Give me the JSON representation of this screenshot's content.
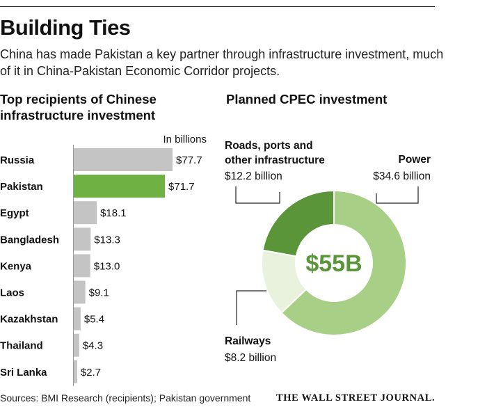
{
  "headline": "Building Ties",
  "dek": "China has made Pakistan a key partner through infrastructure investment, much of it in China-Pakistan Economic Corridor projects.",
  "colors": {
    "bar_default": "#c4c4c4",
    "bar_highlight": "#6fb243",
    "donut_power": "#a8cf86",
    "donut_railways": "#e8f2dc",
    "donut_roads": "#5a953a",
    "total_text": "#5a953a"
  },
  "chart_data": [
    {
      "type": "bar",
      "orientation": "horizontal",
      "title": "Top recipients of Chinese infrastructure investment",
      "unit_label": "In billions",
      "categories": [
        "Russia",
        "Pakistan",
        "Egypt",
        "Bangladesh",
        "Kenya",
        "Laos",
        "Kazakhstan",
        "Thailand",
        "Sri Lanka"
      ],
      "values": [
        77.7,
        71.7,
        18.1,
        13.3,
        13.0,
        9.1,
        5.4,
        4.3,
        2.7
      ],
      "value_labels": [
        "$77.7",
        "$71.7",
        "$18.1",
        "$13.3",
        "$13.0",
        "$9.1",
        "$5.4",
        "$4.3",
        "$2.7"
      ],
      "highlight": "Pakistan",
      "xlim": [
        0,
        77.7
      ]
    },
    {
      "type": "pie",
      "style": "donut",
      "title": "Planned CPEC investment",
      "center_label": "$55B",
      "slices": [
        {
          "name": "Power",
          "value": 34.6,
          "amount_label": "$34.6 billion"
        },
        {
          "name": "Railways",
          "value": 8.2,
          "amount_label": "$8.2 billion"
        },
        {
          "name": "Roads, ports and other infrastructure",
          "value": 12.2,
          "amount_label": "$12.2 billion",
          "label_lines": [
            "Roads, ports and",
            "other infrastructure"
          ]
        }
      ]
    }
  ],
  "footer": {
    "source": "Sources: BMI Research (recipients); Pakistan government",
    "logo": "THE WALL STREET JOURNAL."
  }
}
